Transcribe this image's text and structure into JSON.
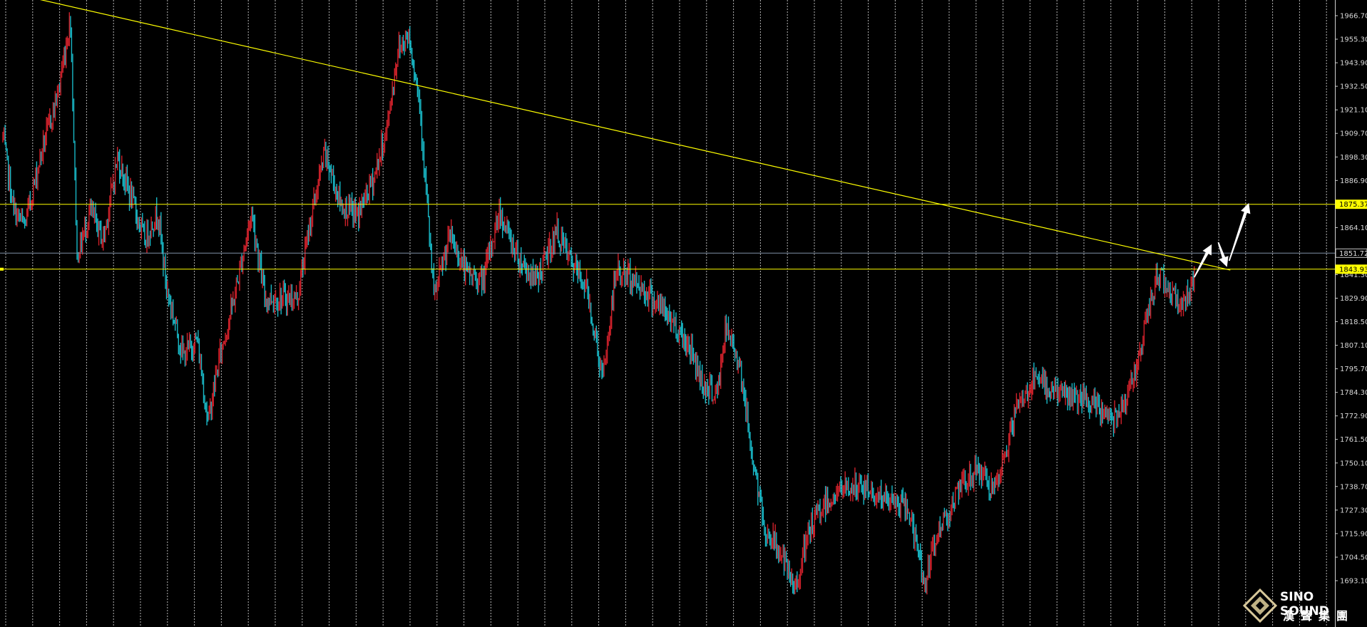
{
  "chart_data": {
    "type": "candlestick",
    "ylim": [
      1680.0,
      1968.0
    ],
    "y_ticks": [
      "1966.70",
      "1955.30",
      "1943.90",
      "1932.50",
      "1921.10",
      "1909.70",
      "1898.30",
      "1886.90",
      "1875.50",
      "1864.10",
      "1852.70",
      "1841.30",
      "1829.90",
      "1818.50",
      "1807.10",
      "1795.70",
      "1784.30",
      "1772.90",
      "1761.50",
      "1750.10",
      "1738.70",
      "1727.30",
      "1715.90",
      "1704.50",
      "1693.10"
    ],
    "price_tags": [
      {
        "value": 1875.37,
        "label": "1875.37",
        "color": "#ffff00"
      },
      {
        "value": 1851.72,
        "label": "1851.72",
        "color": "#c8c8c8"
      },
      {
        "value": 1843.93,
        "label": "1843.93",
        "color": "#ffff00"
      }
    ],
    "horizontal_levels": [
      {
        "value": 1875.37,
        "color": "#ffff00"
      },
      {
        "value": 1851.72,
        "color": "#7f8fa6"
      },
      {
        "value": 1843.93,
        "color": "#ffff00"
      }
    ],
    "trendline": {
      "bar_start": -120,
      "price_start": 1993.0,
      "bar_end": 1125,
      "price_end": 1843.5,
      "color": "#ffff00"
    },
    "grid": true,
    "bull_color": "#d0212b",
    "bear_color": "#19b8c6",
    "price_path": [
      [
        0,
        1908
      ],
      [
        10,
        1872
      ],
      [
        20,
        1865
      ],
      [
        35,
        1900
      ],
      [
        50,
        1928
      ],
      [
        62,
        1965
      ],
      [
        68,
        1850
      ],
      [
        80,
        1872
      ],
      [
        92,
        1858
      ],
      [
        105,
        1898
      ],
      [
        118,
        1878
      ],
      [
        130,
        1858
      ],
      [
        142,
        1872
      ],
      [
        150,
        1835
      ],
      [
        165,
        1802
      ],
      [
        178,
        1810
      ],
      [
        188,
        1770
      ],
      [
        198,
        1800
      ],
      [
        212,
        1830
      ],
      [
        228,
        1872
      ],
      [
        240,
        1830
      ],
      [
        258,
        1830
      ],
      [
        270,
        1830
      ],
      [
        282,
        1868
      ],
      [
        295,
        1900
      ],
      [
        310,
        1875
      ],
      [
        325,
        1870
      ],
      [
        340,
        1888
      ],
      [
        352,
        1912
      ],
      [
        362,
        1950
      ],
      [
        372,
        1958
      ],
      [
        382,
        1925
      ],
      [
        395,
        1830
      ],
      [
        410,
        1860
      ],
      [
        425,
        1842
      ],
      [
        440,
        1838
      ],
      [
        455,
        1872
      ],
      [
        470,
        1852
      ],
      [
        488,
        1838
      ],
      [
        508,
        1862
      ],
      [
        520,
        1848
      ],
      [
        535,
        1835
      ],
      [
        550,
        1790
      ],
      [
        562,
        1843
      ],
      [
        575,
        1840
      ],
      [
        592,
        1832
      ],
      [
        612,
        1820
      ],
      [
        630,
        1806
      ],
      [
        642,
        1788
      ],
      [
        655,
        1783
      ],
      [
        662,
        1815
      ],
      [
        675,
        1800
      ],
      [
        685,
        1760
      ],
      [
        698,
        1718
      ],
      [
        712,
        1708
      ],
      [
        725,
        1688
      ],
      [
        740,
        1718
      ],
      [
        752,
        1730
      ],
      [
        772,
        1738
      ],
      [
        790,
        1738
      ],
      [
        810,
        1732
      ],
      [
        830,
        1728
      ],
      [
        845,
        1692
      ],
      [
        858,
        1718
      ],
      [
        875,
        1735
      ],
      [
        893,
        1748
      ],
      [
        910,
        1735
      ],
      [
        928,
        1775
      ],
      [
        945,
        1790
      ],
      [
        962,
        1786
      ],
      [
        980,
        1782
      ],
      [
        998,
        1778
      ],
      [
        1018,
        1772
      ],
      [
        1035,
        1788
      ],
      [
        1048,
        1818
      ],
      [
        1058,
        1842
      ],
      [
        1070,
        1835
      ],
      [
        1080,
        1825
      ],
      [
        1092,
        1840
      ]
    ],
    "forecast_arrows": [
      {
        "from": [
          1092,
          1840
        ],
        "to": [
          1108,
          1856
        ]
      },
      {
        "from": [
          1114,
          1857
        ],
        "to": [
          1122,
          1845
        ]
      },
      {
        "from": [
          1124,
          1848
        ],
        "to": [
          1142,
          1876
        ]
      }
    ]
  },
  "brand": {
    "name_en": "SINO SOUND",
    "name_zh": "漢聲集團"
  }
}
